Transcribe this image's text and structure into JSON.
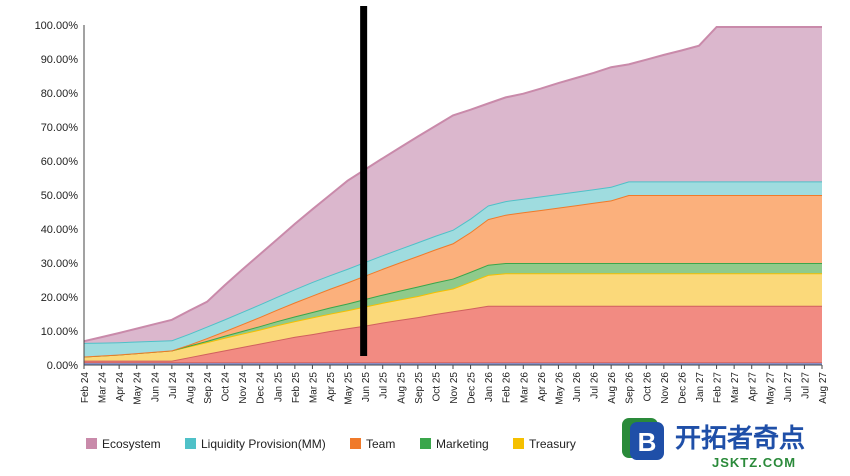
{
  "chart_data": {
    "type": "area",
    "stacked": true,
    "title": "",
    "xlabel": "",
    "ylabel": "",
    "ylim": [
      0,
      100
    ],
    "y_tick_labels": [
      "0.00%",
      "10.00%",
      "20.00%",
      "30.00%",
      "40.00%",
      "50.00%",
      "60.00%",
      "70.00%",
      "80.00%",
      "90.00%",
      "100.00%"
    ],
    "x": [
      "Feb 24",
      "Mar 24",
      "Apr 24",
      "May 24",
      "Jun 24",
      "Jul 24",
      "Aug 24",
      "Sep 24",
      "Oct 24",
      "Nov 24",
      "Dec 24",
      "Jan 25",
      "Feb 25",
      "Mar 25",
      "Apr 25",
      "May 25",
      "Jun 25",
      "Jul 25",
      "Aug 25",
      "Sep 25",
      "Oct 25",
      "Nov 25",
      "Dec 25",
      "Jan 26",
      "Feb 26",
      "Mar 26",
      "Apr 26",
      "May 26",
      "Jun 26",
      "Jul 26",
      "Aug 26",
      "Sep 26",
      "Oct 26",
      "Nov 26",
      "Dec 26",
      "Jan 27",
      "Feb 27",
      "Mar 27",
      "Apr 27",
      "May 27",
      "Jun 27",
      "Jul 27",
      "Aug 27"
    ],
    "grid": false,
    "legend_position": "bottom",
    "marker_line_at": "Jun 25",
    "series": [
      {
        "name": "",
        "color": "#7a9be0",
        "values": [
          0.8,
          0.8,
          0.8,
          0.8,
          0.8,
          0.8,
          0.8,
          0.8,
          0.8,
          0.8,
          0.8,
          0.8,
          0.8,
          0.8,
          0.8,
          0.8,
          0.8,
          0.8,
          0.8,
          0.8,
          0.8,
          0.8,
          0.8,
          0.8,
          0.8,
          0.8,
          0.8,
          0.8,
          0.8,
          0.8,
          0.8,
          0.8,
          0.8,
          0.8,
          0.8,
          0.8,
          0.8,
          0.8,
          0.8,
          0.8,
          0.8,
          0.8,
          0.8
        ]
      },
      {
        "name": "",
        "color": "#f28b82",
        "values": [
          0.5,
          0.5,
          0.5,
          0.5,
          0.5,
          0.5,
          1.5,
          2.5,
          3.5,
          4.5,
          5.5,
          6.5,
          7.5,
          8.3,
          9.2,
          10.0,
          10.8,
          11.7,
          12.5,
          13.3,
          14.2,
          15.0,
          15.8,
          16.6,
          16.6,
          16.6,
          16.6,
          16.6,
          16.6,
          16.6,
          16.6,
          16.6,
          16.6,
          16.6,
          16.6,
          16.6,
          16.6,
          16.6,
          16.6,
          16.6,
          16.6,
          16.6,
          16.6
        ]
      },
      {
        "name": "Treasury",
        "color": "#fbd97a",
        "values": [
          1.2,
          1.5,
          1.8,
          2.2,
          2.6,
          3.0,
          3.2,
          3.4,
          3.7,
          3.9,
          4.1,
          4.4,
          4.6,
          4.9,
          5.1,
          5.3,
          5.6,
          5.8,
          6.0,
          6.2,
          6.5,
          6.7,
          7.9,
          9.1,
          9.6,
          9.6,
          9.6,
          9.6,
          9.6,
          9.6,
          9.6,
          9.6,
          9.6,
          9.6,
          9.6,
          9.6,
          9.6,
          9.6,
          9.6,
          9.6,
          9.6,
          9.6,
          9.6
        ]
      },
      {
        "name": "Marketing",
        "color": "#8fca8b",
        "values": [
          0.0,
          0.0,
          0.0,
          0.0,
          0.0,
          0.0,
          0.2,
          0.4,
          0.6,
          0.8,
          1.0,
          1.2,
          1.4,
          1.6,
          1.8,
          2.0,
          2.2,
          2.4,
          2.6,
          2.8,
          2.8,
          2.9,
          2.9,
          3.0,
          3.0,
          3.0,
          3.0,
          3.0,
          3.0,
          3.0,
          3.0,
          3.0,
          3.0,
          3.0,
          3.0,
          3.0,
          3.0,
          3.0,
          3.0,
          3.0,
          3.0,
          3.0,
          3.0
        ]
      },
      {
        "name": "Team",
        "color": "#fbb07c",
        "values": [
          0.0,
          0.0,
          0.0,
          0.0,
          0.0,
          0.0,
          0.3,
          0.8,
          1.3,
          2.0,
          2.7,
          3.4,
          4.1,
          4.8,
          5.5,
          6.2,
          6.9,
          7.6,
          8.3,
          9.0,
          9.7,
          10.4,
          11.7,
          13.4,
          14.2,
          14.9,
          15.6,
          16.3,
          17.0,
          17.7,
          18.4,
          20.0,
          20.0,
          20.0,
          20.0,
          20.0,
          20.0,
          20.0,
          20.0,
          20.0,
          20.0,
          20.0,
          20.0
        ]
      },
      {
        "name": "Liquidity Provision(MM)",
        "color": "#9fdcdf",
        "values": [
          4.0,
          3.8,
          3.6,
          3.4,
          3.2,
          3.0,
          3.2,
          3.4,
          3.5,
          3.6,
          3.7,
          3.8,
          3.9,
          4.0,
          4.0,
          4.0,
          4.0,
          4.0,
          4.0,
          4.0,
          4.0,
          4.0,
          4.0,
          4.0,
          4.0,
          4.0,
          4.0,
          4.0,
          4.0,
          4.0,
          4.0,
          4.0,
          4.0,
          4.0,
          4.0,
          4.0,
          4.0,
          4.0,
          4.0,
          4.0,
          4.0,
          4.0,
          4.0
        ]
      },
      {
        "name": "Ecosystem",
        "color": "#dbb7cd",
        "values": [
          0.5,
          1.6,
          2.7,
          3.8,
          4.9,
          6.0,
          6.8,
          7.3,
          10.0,
          12.4,
          14.7,
          16.9,
          19.2,
          21.4,
          23.6,
          25.9,
          27.2,
          28.5,
          29.8,
          31.1,
          32.3,
          33.6,
          32.0,
          30.0,
          30.5,
          30.9,
          31.7,
          32.6,
          33.4,
          34.2,
          35.2,
          34.4,
          35.8,
          37.2,
          38.5,
          39.9,
          45.4,
          45.4,
          45.4,
          45.4,
          45.4,
          45.4,
          45.4
        ]
      }
    ]
  },
  "legend": [
    {
      "label": "Ecosystem",
      "color": "#c98aaa"
    },
    {
      "label": "Liquidity Provision(MM)",
      "color": "#4fc1c8"
    },
    {
      "label": "Team",
      "color": "#f07a2a"
    },
    {
      "label": "Marketing",
      "color": "#3aa64b"
    },
    {
      "label": "Treasury",
      "color": "#f5c000"
    }
  ],
  "watermark": {
    "logo_letter": "B",
    "text_cn": "开拓者奇点",
    "text_en": "JSKTZ.COM"
  }
}
